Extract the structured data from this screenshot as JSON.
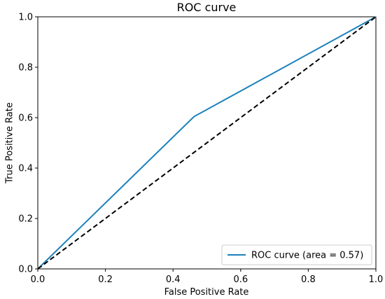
{
  "chart_data": {
    "type": "line",
    "title": "ROC curve",
    "xlabel": "False Positive Rate",
    "ylabel": "True Positive Rate",
    "xlim": [
      0.0,
      1.0
    ],
    "ylim": [
      0.0,
      1.0
    ],
    "xticks": [
      "0.0",
      "0.2",
      "0.4",
      "0.6",
      "0.8",
      "1.0"
    ],
    "yticks": [
      "0.0",
      "0.2",
      "0.4",
      "0.6",
      "0.8",
      "1.0"
    ],
    "grid": false,
    "legend_position": "lower-right",
    "series": [
      {
        "name": "ROC curve (area = 0.57)",
        "color": "#1a80bb",
        "style": "solid",
        "x": [
          0.0,
          0.462,
          1.0
        ],
        "y": [
          0.0,
          0.604,
          1.0
        ]
      },
      {
        "color": "#000000",
        "style": "dashed",
        "x": [
          0.0,
          1.0
        ],
        "y": [
          0.0,
          1.0
        ]
      }
    ]
  }
}
